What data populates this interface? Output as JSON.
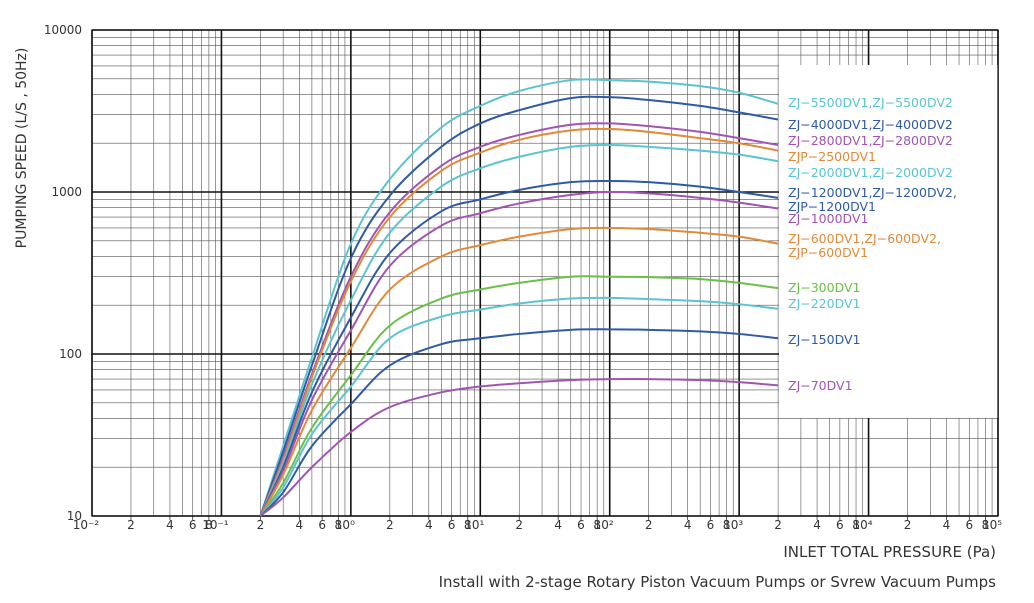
{
  "chart_data": {
    "type": "line",
    "ylabel": "PUMPING SPEED (L/S , 50Hz)",
    "xlabel": "INLET TOTAL PRESSURE (Pa)",
    "note": "Install with 2-stage Rotary Piston Vacuum Pumps or Svrew Vacuum Pumps",
    "xlog": true,
    "ylog": true,
    "grid": true,
    "minor_grid": true,
    "xlim": [
      0.01,
      100000
    ],
    "ylim": [
      10,
      10000
    ],
    "yticks": [
      10,
      100,
      1000,
      10000
    ],
    "xticks": [
      {
        "value": 0.01,
        "label": "10⁻²"
      },
      {
        "value": 0.02,
        "label": "2"
      },
      {
        "value": 0.04,
        "label": "4"
      },
      {
        "value": 0.06,
        "label": "6"
      },
      {
        "value": 0.08,
        "label": "8"
      },
      {
        "value": 0.1,
        "label": "10⁻¹"
      },
      {
        "value": 0.2,
        "label": "2"
      },
      {
        "value": 0.4,
        "label": "4"
      },
      {
        "value": 0.6,
        "label": "6"
      },
      {
        "value": 0.8,
        "label": "8"
      },
      {
        "value": 1,
        "label": "10⁰"
      },
      {
        "value": 2,
        "label": "2"
      },
      {
        "value": 4,
        "label": "4"
      },
      {
        "value": 6,
        "label": "6"
      },
      {
        "value": 8,
        "label": "8"
      },
      {
        "value": 10,
        "label": "10¹"
      },
      {
        "value": 20,
        "label": "2"
      },
      {
        "value": 40,
        "label": "4"
      },
      {
        "value": 60,
        "label": "6"
      },
      {
        "value": 80,
        "label": "8"
      },
      {
        "value": 100,
        "label": "10²"
      },
      {
        "value": 200,
        "label": "2"
      },
      {
        "value": 400,
        "label": "4"
      },
      {
        "value": 600,
        "label": "6"
      },
      {
        "value": 800,
        "label": "8"
      },
      {
        "value": 1000,
        "label": "10³"
      },
      {
        "value": 2000,
        "label": "2"
      },
      {
        "value": 4000,
        "label": "4"
      },
      {
        "value": 6000,
        "label": "6"
      },
      {
        "value": 8000,
        "label": "8"
      },
      {
        "value": 10000,
        "label": "10⁴"
      },
      {
        "value": 20000,
        "label": "2"
      },
      {
        "value": 40000,
        "label": "4"
      },
      {
        "value": 60000,
        "label": "6"
      },
      {
        "value": 80000,
        "label": "8"
      },
      {
        "value": 100000,
        "label": "10⁵"
      }
    ],
    "x": [
      0.2,
      0.3,
      0.5,
      1,
      2,
      5,
      10,
      20,
      50,
      100,
      200,
      500,
      1000,
      2000
    ],
    "series": [
      {
        "name": "ZJ−5500DV1,ZJ−5500DV2",
        "color": "#5bc4d0",
        "values": [
          10,
          27,
          95,
          480,
          1200,
          2500,
          3400,
          4200,
          4900,
          4900,
          4800,
          4500,
          4100,
          3500
        ]
      },
      {
        "name": "ZJ−4000DV1,ZJ−4000DV2",
        "color": "#2f5aa6",
        "values": [
          10,
          25,
          85,
          390,
          950,
          1900,
          2650,
          3200,
          3800,
          3850,
          3700,
          3400,
          3100,
          2800
        ]
      },
      {
        "name": "ZJ−2800DV1,ZJ−2800DV2",
        "color": "#a056b0",
        "values": [
          10,
          23,
          75,
          300,
          750,
          1450,
          1900,
          2250,
          2600,
          2650,
          2550,
          2350,
          2150,
          1950
        ]
      },
      {
        "name": "ZJP−2500DV1",
        "color": "#e08a3a",
        "values": [
          10,
          22,
          72,
          280,
          700,
          1350,
          1750,
          2100,
          2400,
          2450,
          2350,
          2150,
          2000,
          1800
        ]
      },
      {
        "name": "ZJ−2000DV1,ZJ−2000DV2",
        "color": "#5bc4d0",
        "values": [
          10,
          21,
          65,
          215,
          560,
          1080,
          1400,
          1650,
          1900,
          1950,
          1900,
          1800,
          1700,
          1550
        ]
      },
      {
        "name": "ZJ−1200DV1,ZJ−1200DV2, ZJP−1200DV1",
        "color": "#2f5aa6",
        "values": [
          10,
          20,
          58,
          168,
          420,
          760,
          900,
          1030,
          1150,
          1170,
          1150,
          1080,
          1000,
          920
        ]
      },
      {
        "name": "ZJ−1000DV1",
        "color": "#a056b0",
        "values": [
          10,
          19,
          52,
          140,
          350,
          620,
          740,
          850,
          960,
          1000,
          980,
          920,
          860,
          790
        ]
      },
      {
        "name": "ZJ−600DV1,ZJ−600DV2, ZJP−600DV1",
        "color": "#e08a3a",
        "values": [
          10,
          18,
          45,
          109,
          250,
          400,
          470,
          530,
          590,
          600,
          590,
          560,
          530,
          480
        ]
      },
      {
        "name": "ZJ−300DV1",
        "color": "#6bbf4a",
        "values": [
          10,
          16,
          35,
          74,
          150,
          220,
          250,
          275,
          300,
          300,
          298,
          290,
          275,
          255
        ]
      },
      {
        "name": "ZJ−220DV1",
        "color": "#5bc4d0",
        "values": [
          10,
          15,
          32,
          63,
          125,
          170,
          188,
          205,
          220,
          222,
          218,
          212,
          203,
          190
        ]
      },
      {
        "name": "ZJ−150DV1",
        "color": "#2f5aa6",
        "values": [
          10,
          14,
          27,
          49,
          85,
          115,
          125,
          133,
          141,
          142,
          141,
          138,
          133,
          125
        ]
      },
      {
        "name": "ZJ−70DV1",
        "color": "#a056b0",
        "values": [
          10,
          13,
          20,
          33,
          47,
          58,
          63,
          66,
          69,
          70,
          70,
          69,
          67,
          64
        ]
      }
    ]
  }
}
